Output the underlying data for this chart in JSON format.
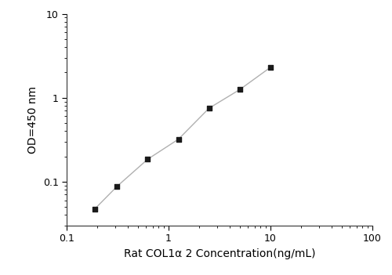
{
  "x": [
    0.188,
    0.313,
    0.625,
    1.25,
    2.5,
    5.0,
    10.0
  ],
  "y": [
    0.047,
    0.088,
    0.185,
    0.32,
    0.75,
    1.25,
    2.3
  ],
  "xlim": [
    0.1,
    100
  ],
  "ylim": [
    0.03,
    10
  ],
  "xlabel": "Rat COL1α 2 Concentration(ng/mL)",
  "ylabel": "OD=450 nm",
  "line_color": "#b0b0b0",
  "marker_color": "#1a1a1a",
  "marker": "s",
  "marker_size": 5,
  "line_width": 1.0,
  "tick_fontsize": 9,
  "label_fontsize": 10,
  "xticks": [
    0.1,
    1,
    10,
    100
  ],
  "yticks": [
    0.1,
    1,
    10
  ],
  "xtick_labels": [
    "0.1",
    "1",
    "10",
    "100"
  ],
  "ytick_labels": [
    "0.1",
    "1",
    "10"
  ]
}
